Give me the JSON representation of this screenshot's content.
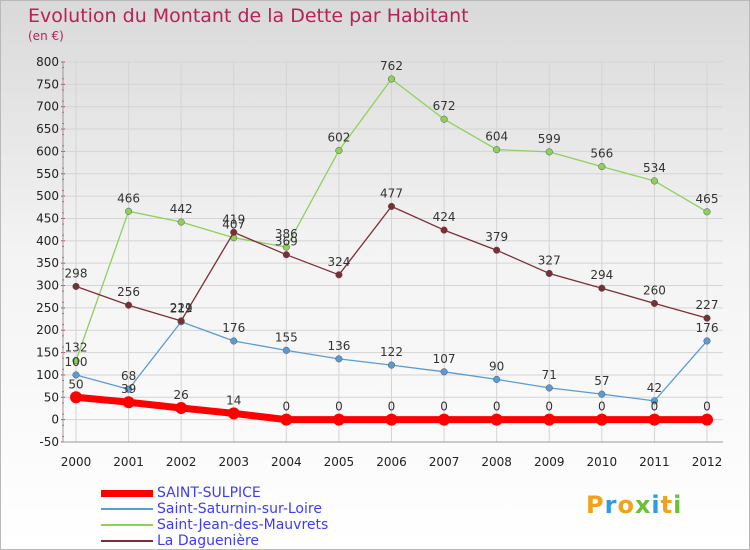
{
  "header": {
    "title": "Evolution du Montant de la Dette par Habitant",
    "unit": "(en €)"
  },
  "logo": {
    "text": "Proxiti"
  },
  "chart_data": {
    "type": "line",
    "title": "Evolution du Montant de la Dette par Habitant",
    "subtitle": "(en €)",
    "xlabel": "",
    "ylabel": "",
    "x": [
      "2000",
      "2001",
      "2002",
      "2003",
      "2004",
      "2005",
      "2006",
      "2007",
      "2008",
      "2009",
      "2010",
      "2011",
      "2012"
    ],
    "ylim": [
      -50,
      800
    ],
    "yticks": [
      -50,
      0,
      50,
      100,
      150,
      200,
      250,
      300,
      350,
      400,
      450,
      500,
      550,
      600,
      650,
      700,
      750,
      800
    ],
    "grid": true,
    "legend": "bottom-left",
    "series": [
      {
        "name": "SAINT-SULPICE",
        "color": "#ff0000",
        "values": [
          50,
          39,
          26,
          14,
          0,
          0,
          0,
          0,
          0,
          0,
          0,
          0,
          0
        ],
        "labels": [
          "50",
          "39",
          "26",
          "14",
          "0",
          "0",
          "0",
          "0",
          "0",
          "0",
          "0",
          "0",
          "0"
        ]
      },
      {
        "name": "Saint-Saturnin-sur-Loire",
        "color": "#5b9bd5",
        "values": [
          100,
          68,
          219,
          176,
          155,
          136,
          122,
          107,
          90,
          71,
          57,
          42,
          176
        ],
        "labels": [
          "100",
          "68",
          "219",
          "176",
          "155",
          "136",
          "122",
          "107",
          "90",
          "71",
          "57",
          "42",
          "176"
        ]
      },
      {
        "name": "Saint-Jean-des-Mauvrets",
        "color": "#8ed15a",
        "values": [
          132,
          466,
          442,
          407,
          386,
          602,
          762,
          672,
          604,
          599,
          566,
          534,
          465
        ],
        "labels": [
          "132",
          "466",
          "442",
          "407",
          "386",
          "602",
          "762",
          "672",
          "604",
          "599",
          "566",
          "534",
          "465"
        ]
      },
      {
        "name": "La Daguenière",
        "color": "#7b2f34",
        "values": [
          298,
          256,
          221,
          419,
          369,
          324,
          477,
          424,
          379,
          327,
          294,
          260,
          227
        ],
        "labels": [
          "298",
          "256",
          "221",
          "419",
          "369",
          "324",
          "477",
          "424",
          "379",
          "327",
          "294",
          "260",
          "227"
        ]
      }
    ]
  }
}
